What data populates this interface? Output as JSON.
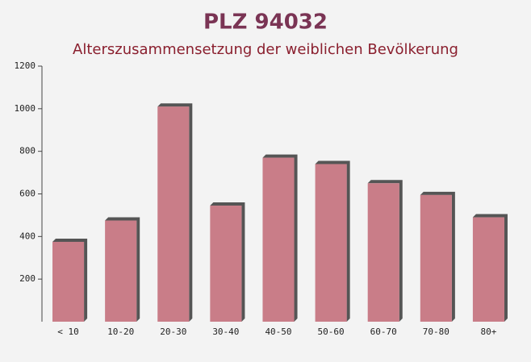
{
  "chart_data": {
    "type": "bar",
    "title": "PLZ 94032",
    "subtitle": "Alterszusammensetzung der weiblichen Bevölkerung",
    "categories": [
      "< 10",
      "10-20",
      "20-30",
      "30-40",
      "40-50",
      "50-60",
      "60-70",
      "70-80",
      "80+"
    ],
    "values": [
      375,
      475,
      1010,
      545,
      770,
      740,
      650,
      595,
      490
    ],
    "color": "#c4707c",
    "ylim": [
      0,
      1200
    ],
    "yticks": [
      200,
      400,
      600,
      800,
      1000,
      1200
    ],
    "grid": false
  }
}
